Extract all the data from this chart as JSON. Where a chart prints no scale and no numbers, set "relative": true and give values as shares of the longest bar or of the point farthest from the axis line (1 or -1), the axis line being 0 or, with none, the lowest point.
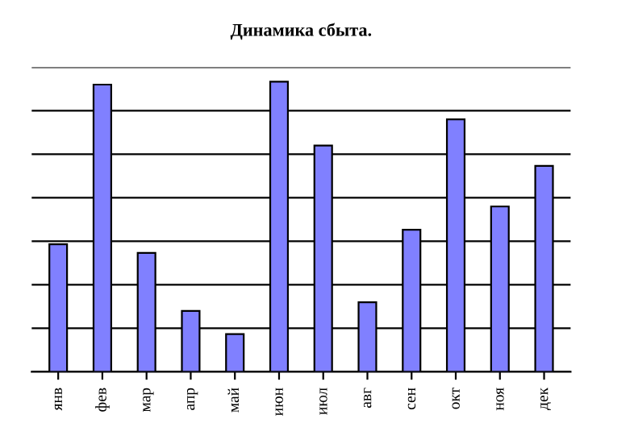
{
  "chart_data": {
    "type": "bar",
    "title": "Динамика сбыта.",
    "relative": true,
    "grid": "y",
    "legend": false,
    "categories": [
      "янв",
      "фев",
      "мар",
      "апр",
      "май",
      "июн",
      "июл",
      "авг",
      "сен",
      "окт",
      "ноя",
      "дек"
    ],
    "values": [
      0.44,
      0.99,
      0.41,
      0.21,
      0.13,
      1,
      0.78,
      0.24,
      0.49,
      0.87,
      0.57,
      0.71
    ],
    "color": "#8080ff"
  }
}
